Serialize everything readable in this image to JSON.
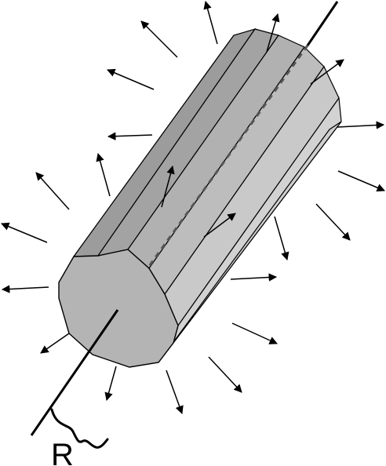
{
  "diagram": {
    "radius_label": "R",
    "colors": {
      "face": "#b8b8b8",
      "side_dark": "#9f9f9f",
      "side_mid": "#b0b0b0",
      "side_light": "#c6c6c6",
      "side_lighter": "#d0d0d0",
      "stroke": "#000000",
      "axis_dash": "#555555"
    },
    "icons": {
      "arrow": "field-arrow-icon"
    }
  }
}
